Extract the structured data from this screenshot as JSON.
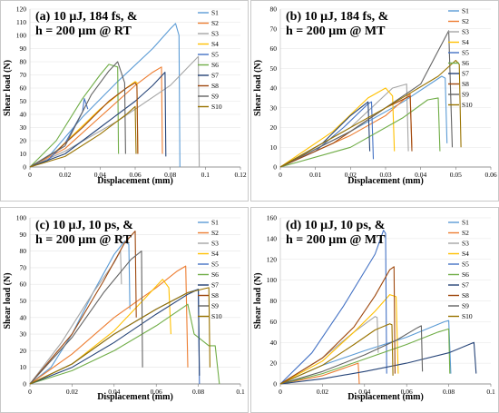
{
  "figure": {
    "palette": {
      "S1": "#5b9bd5",
      "S2": "#ed7d31",
      "S3": "#a5a5a5",
      "S4": "#ffc000",
      "S5": "#4472c4",
      "S6": "#70ad47",
      "S7": "#264478",
      "S8": "#9e480e",
      "S9": "#636363",
      "S10": "#997300"
    }
  },
  "chart_data": [
    {
      "type": "line",
      "title_lines": [
        "(a) 10 μJ, 184 fs, &",
        "h = 200 μm @ RT"
      ],
      "xlabel": "Displacement (mm)",
      "ylabel": "Shear load (N)",
      "xlim": [
        0,
        0.12
      ],
      "ylim": [
        0,
        120
      ],
      "xticks": [
        "0",
        "0.02",
        "0.04",
        "0.06",
        "0.08",
        "0.1",
        "0.12"
      ],
      "yticks": [
        "0",
        "10",
        "20",
        "30",
        "40",
        "50",
        "60",
        "70",
        "80",
        "90",
        "100",
        "110",
        "120"
      ],
      "legend": [
        "S1",
        "S2",
        "S3",
        "S4",
        "S5",
        "S6",
        "S7",
        "S8",
        "S9",
        "S10"
      ],
      "series": [
        {
          "name": "S1",
          "x": [
            0,
            0.012,
            0.03,
            0.05,
            0.07,
            0.08,
            0.083,
            0.085,
            0.0855
          ],
          "y": [
            0,
            10,
            38,
            65,
            90,
            105,
            109,
            100,
            0
          ]
        },
        {
          "name": "S2",
          "x": [
            0,
            0.02,
            0.04,
            0.06,
            0.07,
            0.075,
            0.0755
          ],
          "y": [
            0,
            14,
            38,
            62,
            72,
            76,
            10
          ]
        },
        {
          "name": "S3",
          "x": [
            0,
            0.02,
            0.05,
            0.08,
            0.096,
            0.0965
          ],
          "y": [
            0,
            12,
            35,
            62,
            84,
            0
          ]
        },
        {
          "name": "S4",
          "x": [
            0,
            0.015,
            0.04,
            0.055,
            0.06,
            0.061,
            0.0615
          ],
          "y": [
            0,
            12,
            44,
            60,
            65,
            64,
            10
          ]
        },
        {
          "name": "S5",
          "x": [
            0,
            0.01,
            0.02,
            0.03,
            0.031,
            0.032,
            0.033
          ],
          "y": [
            0,
            5,
            18,
            42,
            52,
            48,
            44
          ]
        },
        {
          "name": "S6",
          "x": [
            0,
            0.015,
            0.03,
            0.04,
            0.045,
            0.05,
            0.0505
          ],
          "y": [
            0,
            20,
            52,
            70,
            78,
            76,
            10
          ]
        },
        {
          "name": "S7",
          "x": [
            0,
            0.02,
            0.04,
            0.06,
            0.07,
            0.077,
            0.0775
          ],
          "y": [
            0,
            10,
            30,
            50,
            62,
            72,
            8
          ]
        },
        {
          "name": "S8",
          "x": [
            0,
            0.015,
            0.03,
            0.045,
            0.055,
            0.06,
            0.061,
            0.0615
          ],
          "y": [
            0,
            12,
            30,
            50,
            60,
            64,
            62,
            10
          ]
        },
        {
          "name": "S9",
          "x": [
            0,
            0.02,
            0.035,
            0.045,
            0.05,
            0.054,
            0.0545
          ],
          "y": [
            0,
            16,
            55,
            73,
            80,
            64,
            10
          ]
        },
        {
          "name": "S10",
          "x": [
            0,
            0.02,
            0.04,
            0.055,
            0.06,
            0.0605
          ],
          "y": [
            0,
            8,
            25,
            40,
            46,
            10
          ]
        }
      ]
    },
    {
      "type": "line",
      "title_lines": [
        "(b) 10 μJ, 184 fs, &",
        "h = 200 μm @ MT"
      ],
      "xlabel": "Displacement (mm)",
      "ylabel": "Shear load (N)",
      "xlim": [
        0,
        0.06
      ],
      "ylim": [
        0,
        80
      ],
      "xticks": [
        "0",
        "0.01",
        "0.02",
        "0.03",
        "0.04",
        "0.05",
        "0.06"
      ],
      "yticks": [
        "0",
        "10",
        "20",
        "30",
        "40",
        "50",
        "60",
        "70",
        "80"
      ],
      "legend": [
        "S1",
        "S2",
        "S3",
        "S4",
        "S5",
        "S6",
        "S7",
        "S8",
        "S9",
        "S10"
      ],
      "series": [
        {
          "name": "S1",
          "x": [
            0,
            0.02,
            0.035,
            0.046,
            0.047,
            0.0475
          ],
          "y": [
            0,
            18,
            33,
            46,
            45,
            12
          ]
        },
        {
          "name": "S2",
          "x": [
            0,
            0.02,
            0.03,
            0.037,
            0.0375
          ],
          "y": [
            0,
            16,
            26,
            37,
            10
          ]
        },
        {
          "name": "S3",
          "x": [
            0,
            0.02,
            0.032,
            0.036,
            0.0365
          ],
          "y": [
            0,
            20,
            40,
            42,
            8
          ]
        },
        {
          "name": "S4",
          "x": [
            0,
            0.015,
            0.025,
            0.03,
            0.032,
            0.0325
          ],
          "y": [
            0,
            18,
            35,
            40,
            36,
            8
          ]
        },
        {
          "name": "S5",
          "x": [
            0,
            0.01,
            0.018,
            0.025,
            0.026,
            0.0265
          ],
          "y": [
            0,
            8,
            20,
            32,
            33,
            4
          ]
        },
        {
          "name": "S6",
          "x": [
            0,
            0.02,
            0.035,
            0.042,
            0.045,
            0.0455
          ],
          "y": [
            0,
            10,
            25,
            34,
            35,
            8
          ]
        },
        {
          "name": "S7",
          "x": [
            0,
            0.012,
            0.02,
            0.025,
            0.0255
          ],
          "y": [
            0,
            12,
            26,
            33,
            8
          ]
        },
        {
          "name": "S8",
          "x": [
            0,
            0.015,
            0.03,
            0.037,
            0.0375
          ],
          "y": [
            0,
            12,
            30,
            36,
            8
          ]
        },
        {
          "name": "S9",
          "x": [
            0,
            0.02,
            0.04,
            0.048,
            0.049
          ],
          "y": [
            0,
            18,
            42,
            69,
            10
          ]
        },
        {
          "name": "S10",
          "x": [
            0,
            0.015,
            0.03,
            0.045,
            0.05,
            0.051,
            0.0515
          ],
          "y": [
            0,
            15,
            30,
            46,
            54,
            52,
            10
          ]
        }
      ]
    },
    {
      "type": "line",
      "title_lines": [
        "(c) 10 μJ, 10 ps, &",
        "h = 200 μm @ RT"
      ],
      "xlabel": "Displacement (mm)",
      "ylabel": "Shear load (N)",
      "xlim": [
        0,
        0.1
      ],
      "ylim": [
        0,
        100
      ],
      "xticks": [
        "0",
        "0.02",
        "0.04",
        "0.06",
        "0.08",
        "0.1"
      ],
      "yticks": [
        "0",
        "10",
        "20",
        "30",
        "40",
        "50",
        "60",
        "70",
        "80",
        "90",
        "100"
      ],
      "legend": [
        "S1",
        "S2",
        "S3",
        "S4",
        "S5",
        "S6",
        "S7",
        "S8",
        "S9",
        "S10"
      ],
      "series": [
        {
          "name": "S1",
          "x": [
            0,
            0.01,
            0.02,
            0.03,
            0.04,
            0.045,
            0.047,
            0.0475
          ],
          "y": [
            0,
            10,
            30,
            55,
            78,
            86,
            84,
            45
          ]
        },
        {
          "name": "S2",
          "x": [
            0,
            0.02,
            0.04,
            0.06,
            0.07,
            0.074,
            0.075
          ],
          "y": [
            0,
            18,
            40,
            58,
            68,
            71,
            10
          ]
        },
        {
          "name": "S3",
          "x": [
            0,
            0.015,
            0.03,
            0.04,
            0.043,
            0.0435
          ],
          "y": [
            0,
            25,
            55,
            73,
            80,
            60
          ]
        },
        {
          "name": "S4",
          "x": [
            0,
            0.02,
            0.04,
            0.055,
            0.063,
            0.066,
            0.067
          ],
          "y": [
            0,
            12,
            32,
            52,
            63,
            58,
            30
          ]
        },
        {
          "name": "S5",
          "x": [
            0,
            0.02,
            0.04,
            0.06,
            0.075,
            0.08,
            0.0805
          ],
          "y": [
            0,
            12,
            30,
            45,
            55,
            57,
            0
          ]
        },
        {
          "name": "S6",
          "x": [
            0,
            0.02,
            0.04,
            0.06,
            0.075,
            0.078,
            0.085,
            0.088,
            0.09
          ],
          "y": [
            0,
            8,
            20,
            35,
            48,
            30,
            23,
            23,
            0
          ]
        },
        {
          "name": "S7",
          "x": [
            0,
            0.02,
            0.04,
            0.06,
            0.075,
            0.08,
            0.0805
          ],
          "y": [
            0,
            10,
            25,
            42,
            54,
            57,
            5
          ]
        },
        {
          "name": "S8",
          "x": [
            0,
            0.02,
            0.035,
            0.045,
            0.05,
            0.0505
          ],
          "y": [
            0,
            30,
            62,
            85,
            92,
            40
          ]
        },
        {
          "name": "S9",
          "x": [
            0,
            0.02,
            0.035,
            0.048,
            0.053,
            0.0535
          ],
          "y": [
            0,
            28,
            55,
            75,
            80,
            10
          ]
        },
        {
          "name": "S10",
          "x": [
            0,
            0.02,
            0.04,
            0.06,
            0.075,
            0.085,
            0.0855
          ],
          "y": [
            0,
            12,
            30,
            45,
            55,
            58,
            10
          ]
        }
      ]
    },
    {
      "type": "line",
      "title_lines": [
        "(d) 10 μJ, 10 ps, &",
        "h = 200 μm @ MT"
      ],
      "xlabel": "Displacement (mm)",
      "ylabel": "Shear load (N)",
      "xlim": [
        0,
        0.1
      ],
      "ylim": [
        0,
        160
      ],
      "xticks": [
        "0",
        "0.02",
        "0.04",
        "0.06",
        "0.08",
        "0.1"
      ],
      "yticks": [
        "0",
        "20",
        "40",
        "60",
        "80",
        "100",
        "120",
        "140",
        "160"
      ],
      "legend": [
        "S1",
        "S2",
        "S3",
        "S4",
        "S5",
        "S6",
        "S7",
        "S8",
        "S9",
        "S10"
      ],
      "series": [
        {
          "name": "S1",
          "x": [
            0,
            0.02,
            0.04,
            0.06,
            0.078,
            0.08,
            0.081
          ],
          "y": [
            0,
            18,
            32,
            45,
            60,
            61,
            10
          ]
        },
        {
          "name": "S2",
          "x": [
            0,
            0.01,
            0.02,
            0.03,
            0.037,
            0.0375
          ],
          "y": [
            0,
            4,
            8,
            15,
            20,
            0
          ]
        },
        {
          "name": "S3",
          "x": [
            0,
            0.02,
            0.035,
            0.045,
            0.046,
            0.0465
          ],
          "y": [
            0,
            25,
            50,
            65,
            64,
            30
          ]
        },
        {
          "name": "S4",
          "x": [
            0,
            0.02,
            0.035,
            0.045,
            0.052,
            0.055,
            0.056
          ],
          "y": [
            0,
            22,
            50,
            70,
            86,
            84,
            10
          ]
        },
        {
          "name": "S5",
          "x": [
            0,
            0.015,
            0.03,
            0.045,
            0.049,
            0.05,
            0.0505
          ],
          "y": [
            0,
            30,
            75,
            125,
            148,
            145,
            10
          ]
        },
        {
          "name": "S6",
          "x": [
            0,
            0.02,
            0.04,
            0.06,
            0.075,
            0.08,
            0.0805
          ],
          "y": [
            0,
            10,
            24,
            38,
            50,
            53,
            10
          ]
        },
        {
          "name": "S7",
          "x": [
            0,
            0.02,
            0.04,
            0.06,
            0.08,
            0.092,
            0.093
          ],
          "y": [
            0,
            5,
            12,
            20,
            30,
            40,
            10
          ]
        },
        {
          "name": "S8",
          "x": [
            0,
            0.02,
            0.035,
            0.045,
            0.052,
            0.054,
            0.0545
          ],
          "y": [
            0,
            25,
            55,
            85,
            110,
            113,
            10
          ]
        },
        {
          "name": "S9",
          "x": [
            0,
            0.02,
            0.04,
            0.055,
            0.065,
            0.067,
            0.0675
          ],
          "y": [
            0,
            12,
            28,
            42,
            54,
            56,
            12
          ]
        },
        {
          "name": "S10",
          "x": [
            0,
            0.02,
            0.035,
            0.045,
            0.052,
            0.053,
            0.0535
          ],
          "y": [
            0,
            18,
            38,
            52,
            58,
            57,
            8
          ]
        }
      ]
    }
  ]
}
